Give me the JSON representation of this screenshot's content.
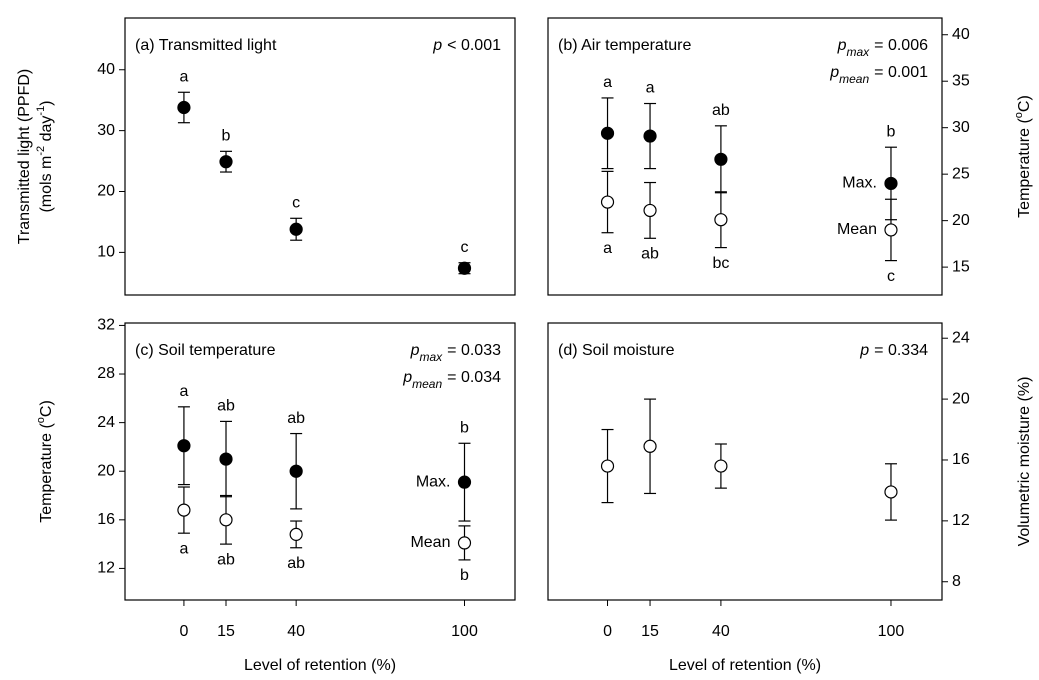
{
  "chart_data": [
    {
      "type": "scatter",
      "title": "(a) Transmitted light",
      "stat": [
        {
          "p": "p",
          "text": "< 0.001"
        }
      ],
      "ylabel": [
        [
          "Transmitted light (PPFD)"
        ],
        [
          "(mols m",
          "-2",
          " day",
          "-1",
          ")"
        ]
      ],
      "yaxis_side": "left",
      "x": [
        0,
        15,
        40,
        100
      ],
      "xlim": [
        -21,
        118
      ],
      "ylim": [
        3,
        48.5
      ],
      "yticks": [
        10,
        20,
        30,
        40
      ],
      "series": [
        {
          "fill": "#000000",
          "values": [
            33.8,
            24.9,
            13.8,
            7.4
          ],
          "errors": [
            2.5,
            1.7,
            1.8,
            0.9
          ],
          "letters": [
            "a",
            "b",
            "c",
            "c"
          ],
          "letter_pos": "above"
        }
      ]
    },
    {
      "type": "scatter",
      "title": "(b) Air temperature",
      "stat": [
        {
          "p": "p",
          "sub": "max",
          "text": "= 0.006"
        },
        {
          "p": "p",
          "sub": "mean",
          "text": "= 0.001"
        }
      ],
      "ylabel": [
        [
          "Temperature (",
          "o",
          "C)"
        ]
      ],
      "yaxis_side": "right",
      "x": [
        0,
        15,
        40,
        100
      ],
      "xlim": [
        -21,
        118
      ],
      "ylim": [
        12,
        41.8
      ],
      "yticks": [
        15,
        20,
        25,
        30,
        35,
        40
      ],
      "series": [
        {
          "name": "Max.",
          "fill": "#000000",
          "values": [
            29.4,
            29.1,
            26.6,
            24.0
          ],
          "errors": [
            3.8,
            3.5,
            3.6,
            3.9
          ],
          "letters": [
            "a",
            "a",
            "ab",
            "b"
          ],
          "letter_pos": "above"
        },
        {
          "name": "Mean",
          "fill": "#ffffff",
          "values": [
            22.0,
            21.1,
            20.1,
            19.0
          ],
          "errors": [
            3.3,
            3.0,
            3.0,
            3.3
          ],
          "letters": [
            "a",
            "ab",
            "bc",
            "c"
          ],
          "letter_pos": "below"
        }
      ]
    },
    {
      "type": "scatter",
      "title": "(c) Soil temperature",
      "stat": [
        {
          "p": "p",
          "sub": "max",
          "text": "= 0.033"
        },
        {
          "p": "p",
          "sub": "mean",
          "text": "= 0.034"
        }
      ],
      "ylabel": [
        [
          "Temperature (",
          "o",
          "C)"
        ]
      ],
      "xlabel": "Level of retention (%)",
      "yaxis_side": "left",
      "x": [
        0,
        15,
        40,
        100
      ],
      "xlim": [
        -21,
        118
      ],
      "xticks": [
        0,
        15,
        40,
        100
      ],
      "ylim": [
        9.4,
        32.2
      ],
      "yticks": [
        12,
        16,
        20,
        24,
        28,
        32
      ],
      "series": [
        {
          "name": "Max.",
          "fill": "#000000",
          "values": [
            22.1,
            21.0,
            20.0,
            19.1
          ],
          "errors": [
            3.2,
            3.1,
            3.1,
            3.2
          ],
          "letters": [
            "a",
            "ab",
            "ab",
            "b"
          ],
          "letter_pos": "above"
        },
        {
          "name": "Mean",
          "fill": "#ffffff",
          "values": [
            16.8,
            16.0,
            14.8,
            14.1
          ],
          "errors": [
            1.9,
            2.0,
            1.1,
            1.4
          ],
          "letters": [
            "a",
            "ab",
            "ab",
            "b"
          ],
          "letter_pos": "below"
        }
      ]
    },
    {
      "type": "scatter",
      "title": "(d) Soil moisture",
      "stat": [
        {
          "p": "p",
          "text": "= 0.334"
        }
      ],
      "ylabel": [
        [
          "Volumetric moisture (%)"
        ]
      ],
      "xlabel": "Level of retention (%)",
      "yaxis_side": "right",
      "x": [
        0,
        15,
        40,
        100
      ],
      "xlim": [
        -21,
        118
      ],
      "xticks": [
        0,
        15,
        40,
        100
      ],
      "ylim": [
        6.8,
        25
      ],
      "yticks": [
        8,
        12,
        16,
        20,
        24
      ],
      "series": [
        {
          "fill": "#ffffff",
          "values": [
            15.6,
            16.9,
            15.6,
            13.9
          ],
          "errors": [
            2.4,
            3.1,
            1.45,
            1.85
          ]
        }
      ]
    }
  ]
}
